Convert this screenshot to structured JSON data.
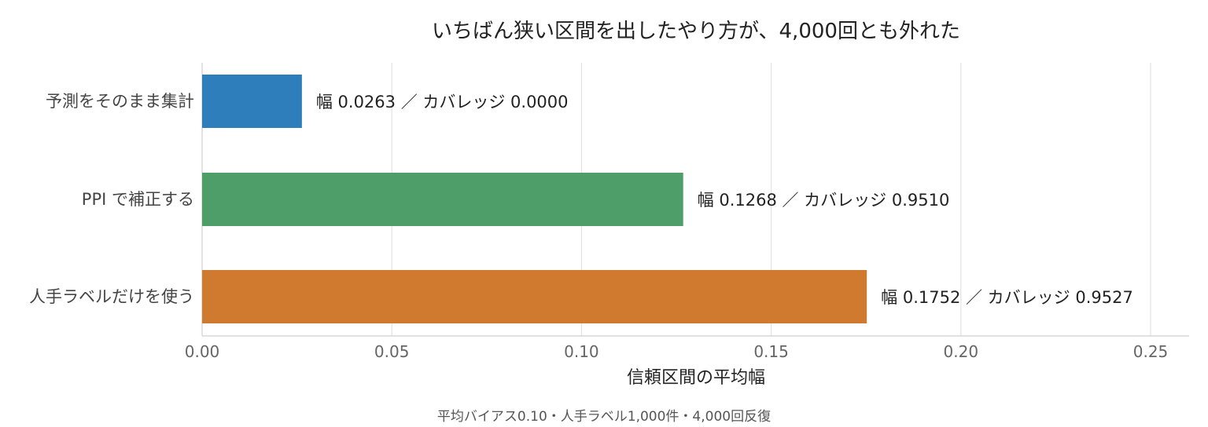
{
  "chart_data": {
    "type": "bar",
    "orientation": "horizontal",
    "title": "いちばん狭い区間を出したやり方が、4,000回とも外れた",
    "xlabel": "信頼区間の平均幅",
    "ylabel": "",
    "xlim": [
      0,
      0.25
    ],
    "xticks": [
      0.0,
      0.05,
      0.1,
      0.15,
      0.2,
      0.25
    ],
    "xtick_labels": [
      "0.00",
      "0.05",
      "0.10",
      "0.15",
      "0.20",
      "0.25"
    ],
    "grid": "vertical",
    "categories": [
      "予測をそのまま集計",
      "PPI で補正する",
      "人手ラベルだけを使う"
    ],
    "values": [
      0.0263,
      0.1268,
      0.1752
    ],
    "coverage": [
      0.0,
      0.951,
      0.9527
    ],
    "colors": [
      "#2f7ebc",
      "#4e9e6a",
      "#d07a2f"
    ],
    "data_labels": [
      "幅 0.0263 ／ カバレッジ 0.0000",
      "幅 0.1268 ／ カバレッジ 0.9510",
      "幅 0.1752 ／ カバレッジ 0.9527"
    ],
    "footnote": "平均バイアス0.10・人手ラベル1,000件・4,000回反復"
  }
}
